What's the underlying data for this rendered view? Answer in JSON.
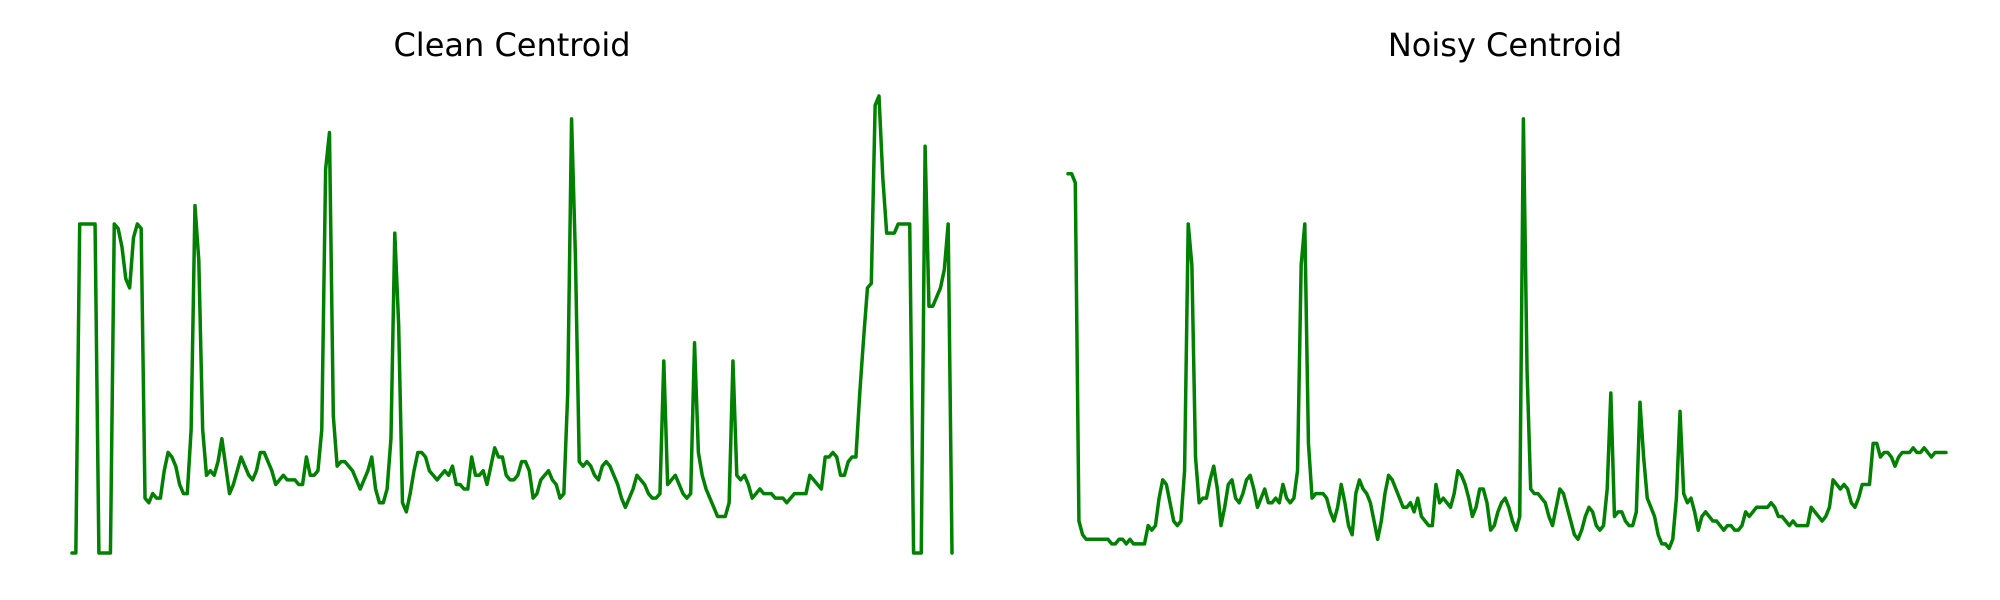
{
  "line_color": "#008000",
  "chart_data": [
    {
      "type": "line",
      "title": "Clean Centroid",
      "axes_visible": false,
      "grid": false,
      "ylim": [
        0,
        1
      ],
      "series": [
        {
          "values": [
            0.0,
            0.0,
            0.72,
            0.72,
            0.72,
            0.72,
            0.72,
            0.0,
            0.0,
            0.0,
            0.0,
            0.72,
            0.71,
            0.67,
            0.6,
            0.58,
            0.69,
            0.72,
            0.71,
            0.12,
            0.11,
            0.13,
            0.12,
            0.12,
            0.18,
            0.22,
            0.21,
            0.19,
            0.15,
            0.13,
            0.13,
            0.27,
            0.76,
            0.64,
            0.27,
            0.17,
            0.18,
            0.17,
            0.2,
            0.25,
            0.19,
            0.13,
            0.15,
            0.18,
            0.21,
            0.19,
            0.17,
            0.16,
            0.18,
            0.22,
            0.22,
            0.2,
            0.18,
            0.15,
            0.16,
            0.17,
            0.16,
            0.16,
            0.16,
            0.15,
            0.15,
            0.21,
            0.17,
            0.17,
            0.18,
            0.27,
            0.84,
            0.92,
            0.3,
            0.19,
            0.2,
            0.2,
            0.19,
            0.18,
            0.16,
            0.14,
            0.16,
            0.18,
            0.21,
            0.14,
            0.11,
            0.11,
            0.14,
            0.25,
            0.7,
            0.5,
            0.11,
            0.09,
            0.13,
            0.18,
            0.22,
            0.22,
            0.21,
            0.18,
            0.17,
            0.16,
            0.17,
            0.18,
            0.17,
            0.19,
            0.15,
            0.15,
            0.14,
            0.14,
            0.21,
            0.17,
            0.17,
            0.18,
            0.15,
            0.19,
            0.23,
            0.21,
            0.21,
            0.17,
            0.16,
            0.16,
            0.17,
            0.2,
            0.2,
            0.18,
            0.12,
            0.13,
            0.16,
            0.17,
            0.18,
            0.16,
            0.15,
            0.12,
            0.13,
            0.35,
            0.95,
            0.65,
            0.2,
            0.19,
            0.2,
            0.19,
            0.17,
            0.16,
            0.19,
            0.2,
            0.19,
            0.17,
            0.15,
            0.12,
            0.1,
            0.12,
            0.14,
            0.17,
            0.16,
            0.15,
            0.13,
            0.12,
            0.12,
            0.13,
            0.42,
            0.15,
            0.16,
            0.17,
            0.15,
            0.13,
            0.12,
            0.13,
            0.46,
            0.22,
            0.17,
            0.14,
            0.12,
            0.1,
            0.08,
            0.08,
            0.08,
            0.11,
            0.42,
            0.17,
            0.16,
            0.17,
            0.15,
            0.12,
            0.13,
            0.14,
            0.13,
            0.13,
            0.13,
            0.12,
            0.12,
            0.12,
            0.11,
            0.12,
            0.13,
            0.13,
            0.13,
            0.13,
            0.17,
            0.16,
            0.15,
            0.14,
            0.21,
            0.21,
            0.22,
            0.21,
            0.17,
            0.17,
            0.2,
            0.21,
            0.21,
            0.35,
            0.47,
            0.58,
            0.59,
            0.98,
            1.0,
            0.82,
            0.7,
            0.7,
            0.7,
            0.72,
            0.72,
            0.72,
            0.72,
            0.0,
            0.0,
            0.0,
            0.89,
            0.54,
            0.54,
            0.56,
            0.58,
            0.62,
            0.72,
            0.0
          ]
        }
      ]
    },
    {
      "type": "line",
      "title": "Noisy Centroid",
      "axes_visible": false,
      "grid": false,
      "ylim": [
        0,
        1
      ],
      "series": [
        {
          "values": [
            0.83,
            0.83,
            0.81,
            0.07,
            0.04,
            0.03,
            0.03,
            0.03,
            0.03,
            0.03,
            0.03,
            0.03,
            0.02,
            0.02,
            0.03,
            0.03,
            0.02,
            0.03,
            0.02,
            0.02,
            0.02,
            0.02,
            0.06,
            0.05,
            0.06,
            0.12,
            0.16,
            0.15,
            0.11,
            0.07,
            0.06,
            0.07,
            0.18,
            0.72,
            0.63,
            0.21,
            0.11,
            0.12,
            0.12,
            0.16,
            0.19,
            0.14,
            0.06,
            0.1,
            0.15,
            0.16,
            0.12,
            0.11,
            0.13,
            0.16,
            0.17,
            0.14,
            0.1,
            0.12,
            0.14,
            0.11,
            0.11,
            0.12,
            0.11,
            0.15,
            0.12,
            0.11,
            0.12,
            0.18,
            0.63,
            0.72,
            0.24,
            0.12,
            0.13,
            0.13,
            0.13,
            0.12,
            0.09,
            0.07,
            0.1,
            0.15,
            0.11,
            0.06,
            0.04,
            0.13,
            0.16,
            0.14,
            0.13,
            0.11,
            0.07,
            0.03,
            0.07,
            0.13,
            0.17,
            0.16,
            0.14,
            0.12,
            0.1,
            0.1,
            0.11,
            0.09,
            0.12,
            0.08,
            0.07,
            0.06,
            0.06,
            0.15,
            0.11,
            0.12,
            0.11,
            0.1,
            0.13,
            0.18,
            0.17,
            0.15,
            0.12,
            0.08,
            0.1,
            0.14,
            0.14,
            0.11,
            0.05,
            0.06,
            0.09,
            0.11,
            0.12,
            0.1,
            0.07,
            0.05,
            0.08,
            0.95,
            0.4,
            0.14,
            0.13,
            0.13,
            0.12,
            0.11,
            0.08,
            0.06,
            0.1,
            0.14,
            0.13,
            0.1,
            0.07,
            0.04,
            0.03,
            0.05,
            0.08,
            0.1,
            0.09,
            0.06,
            0.05,
            0.06,
            0.14,
            0.35,
            0.08,
            0.09,
            0.09,
            0.07,
            0.06,
            0.06,
            0.09,
            0.33,
            0.21,
            0.12,
            0.1,
            0.08,
            0.04,
            0.02,
            0.02,
            0.01,
            0.03,
            0.12,
            0.31,
            0.13,
            0.11,
            0.12,
            0.09,
            0.05,
            0.08,
            0.09,
            0.08,
            0.07,
            0.07,
            0.06,
            0.05,
            0.06,
            0.06,
            0.05,
            0.05,
            0.06,
            0.09,
            0.08,
            0.09,
            0.1,
            0.1,
            0.1,
            0.1,
            0.11,
            0.1,
            0.08,
            0.08,
            0.07,
            0.06,
            0.07,
            0.06,
            0.06,
            0.06,
            0.06,
            0.1,
            0.09,
            0.08,
            0.07,
            0.08,
            0.1,
            0.16,
            0.15,
            0.14,
            0.15,
            0.14,
            0.11,
            0.1,
            0.12,
            0.15,
            0.15,
            0.15,
            0.24,
            0.24,
            0.21,
            0.22,
            0.22,
            0.21,
            0.19,
            0.21,
            0.22,
            0.22,
            0.22,
            0.23,
            0.22,
            0.22,
            0.23,
            0.22,
            0.21,
            0.22,
            0.22,
            0.22,
            0.22
          ]
        }
      ]
    }
  ]
}
